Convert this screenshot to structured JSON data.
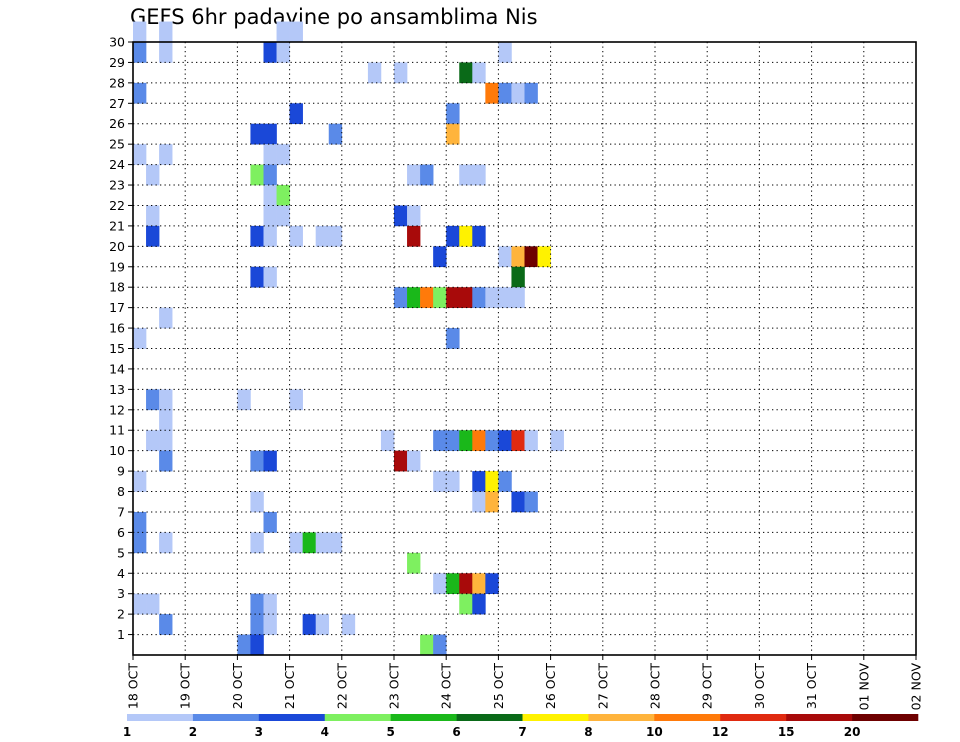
{
  "chart_data": {
    "type": "heatmap",
    "title": "GEFS 6hr padavine po ansamblima Nis",
    "xlabel": "",
    "ylabel": "",
    "x_tick_labels": [
      "18 OCT",
      "19 OCT",
      "20 OCT",
      "21 OCT",
      "22 OCT",
      "23 OCT",
      "24 OCT",
      "25 OCT",
      "26 OCT",
      "27 OCT",
      "28 OCT",
      "29 OCT",
      "30 OCT",
      "31 OCT",
      "01 NOV",
      "02 NOV"
    ],
    "x_time_steps": 60,
    "steps_per_day": 4,
    "y_tick_labels": [
      "1",
      "2",
      "3",
      "4",
      "5",
      "6",
      "7",
      "8",
      "9",
      "10",
      "11",
      "12",
      "13",
      "14",
      "15",
      "16",
      "17",
      "18",
      "19",
      "20",
      "21",
      "22",
      "23",
      "24",
      "25",
      "26",
      "27",
      "28",
      "29",
      "30"
    ],
    "ylim": [
      0,
      30
    ],
    "grid": true,
    "colorbar": {
      "labels": [
        "1",
        "2",
        "3",
        "4",
        "5",
        "6",
        "7",
        "8",
        "10",
        "12",
        "15",
        "20"
      ],
      "colors": [
        "#b4c8f8",
        "#5a8ae8",
        "#1a48d8",
        "#7ef060",
        "#1ab81a",
        "#0a6a18",
        "#fff200",
        "#ffb43c",
        "#ff7a0a",
        "#e02a10",
        "#a80a0a",
        "#6e0000"
      ]
    },
    "cells": [
      [
        0,
        30,
        1
      ],
      [
        2,
        30,
        1
      ],
      [
        11,
        30,
        1
      ],
      [
        12,
        30,
        1
      ],
      [
        0,
        29,
        2
      ],
      [
        2,
        29,
        1
      ],
      [
        10,
        29,
        3
      ],
      [
        11,
        29,
        1
      ],
      [
        28,
        29,
        1
      ],
      [
        18,
        28,
        1
      ],
      [
        20,
        28,
        1
      ],
      [
        25,
        28,
        6
      ],
      [
        26,
        28,
        1
      ],
      [
        0,
        27,
        2
      ],
      [
        27,
        27,
        9
      ],
      [
        28,
        27,
        2
      ],
      [
        29,
        27,
        1
      ],
      [
        30,
        27,
        2
      ],
      [
        12,
        26,
        3
      ],
      [
        24,
        26,
        2
      ],
      [
        9,
        25,
        3
      ],
      [
        10,
        25,
        3
      ],
      [
        15,
        25,
        2
      ],
      [
        24,
        25,
        8
      ],
      [
        0,
        24,
        1
      ],
      [
        2,
        24,
        1
      ],
      [
        10,
        24,
        1
      ],
      [
        11,
        24,
        1
      ],
      [
        1,
        23,
        1
      ],
      [
        9,
        23,
        4
      ],
      [
        10,
        23,
        2
      ],
      [
        21,
        23,
        1
      ],
      [
        22,
        23,
        2
      ],
      [
        25,
        23,
        1
      ],
      [
        26,
        23,
        1
      ],
      [
        10,
        22,
        1
      ],
      [
        11,
        22,
        4
      ],
      [
        1,
        21,
        1
      ],
      [
        10,
        21,
        1
      ],
      [
        11,
        21,
        1
      ],
      [
        20,
        21,
        3
      ],
      [
        21,
        21,
        1
      ],
      [
        1,
        20,
        3
      ],
      [
        9,
        20,
        3
      ],
      [
        10,
        20,
        1
      ],
      [
        12,
        20,
        1
      ],
      [
        14,
        20,
        1
      ],
      [
        15,
        20,
        1
      ],
      [
        21,
        20,
        11
      ],
      [
        24,
        20,
        3
      ],
      [
        25,
        20,
        7
      ],
      [
        26,
        20,
        3
      ],
      [
        23,
        19,
        3
      ],
      [
        28,
        19,
        1
      ],
      [
        29,
        19,
        8
      ],
      [
        30,
        19,
        12
      ],
      [
        31,
        19,
        7
      ],
      [
        9,
        18,
        3
      ],
      [
        10,
        18,
        1
      ],
      [
        29,
        18,
        6
      ],
      [
        20,
        17,
        2
      ],
      [
        21,
        17,
        5
      ],
      [
        22,
        17,
        9
      ],
      [
        23,
        17,
        4
      ],
      [
        24,
        17,
        11
      ],
      [
        25,
        17,
        11
      ],
      [
        26,
        17,
        2
      ],
      [
        27,
        17,
        1
      ],
      [
        28,
        17,
        1
      ],
      [
        29,
        17,
        1
      ],
      [
        2,
        16,
        1
      ],
      [
        0,
        15,
        1
      ],
      [
        24,
        15,
        2
      ],
      [
        1,
        12,
        2
      ],
      [
        2,
        12,
        1
      ],
      [
        8,
        12,
        1
      ],
      [
        12,
        12,
        1
      ],
      [
        2,
        11,
        1
      ],
      [
        1,
        10,
        1
      ],
      [
        2,
        10,
        1
      ],
      [
        19,
        10,
        1
      ],
      [
        23,
        10,
        2
      ],
      [
        24,
        10,
        2
      ],
      [
        25,
        10,
        5
      ],
      [
        26,
        10,
        9
      ],
      [
        27,
        10,
        2
      ],
      [
        28,
        10,
        3
      ],
      [
        29,
        10,
        10
      ],
      [
        30,
        10,
        1
      ],
      [
        32,
        10,
        1
      ],
      [
        2,
        9,
        2
      ],
      [
        9,
        9,
        2
      ],
      [
        10,
        9,
        3
      ],
      [
        20,
        9,
        11
      ],
      [
        21,
        9,
        1
      ],
      [
        0,
        8,
        1
      ],
      [
        23,
        8,
        1
      ],
      [
        24,
        8,
        1
      ],
      [
        26,
        8,
        3
      ],
      [
        27,
        8,
        7
      ],
      [
        28,
        8,
        2
      ],
      [
        9,
        7,
        1
      ],
      [
        26,
        7,
        1
      ],
      [
        27,
        7,
        8
      ],
      [
        29,
        7,
        3
      ],
      [
        30,
        7,
        2
      ],
      [
        0,
        6,
        2
      ],
      [
        10,
        6,
        2
      ],
      [
        0,
        5,
        2
      ],
      [
        2,
        5,
        1
      ],
      [
        9,
        5,
        1
      ],
      [
        12,
        5,
        1
      ],
      [
        13,
        5,
        5
      ],
      [
        14,
        5,
        1
      ],
      [
        15,
        5,
        1
      ],
      [
        21,
        4,
        4
      ],
      [
        23,
        3,
        1
      ],
      [
        24,
        3,
        5
      ],
      [
        25,
        3,
        11
      ],
      [
        26,
        3,
        8
      ],
      [
        27,
        3,
        3
      ],
      [
        0,
        2,
        1
      ],
      [
        1,
        2,
        1
      ],
      [
        9,
        2,
        2
      ],
      [
        10,
        2,
        1
      ],
      [
        25,
        2,
        4
      ],
      [
        26,
        2,
        3
      ],
      [
        2,
        1,
        2
      ],
      [
        9,
        1,
        2
      ],
      [
        10,
        1,
        1
      ],
      [
        13,
        1,
        3
      ],
      [
        14,
        1,
        1
      ],
      [
        16,
        1,
        1
      ],
      [
        8,
        0,
        2
      ],
      [
        9,
        0,
        3
      ],
      [
        22,
        0,
        4
      ],
      [
        23,
        0,
        2
      ]
    ]
  }
}
